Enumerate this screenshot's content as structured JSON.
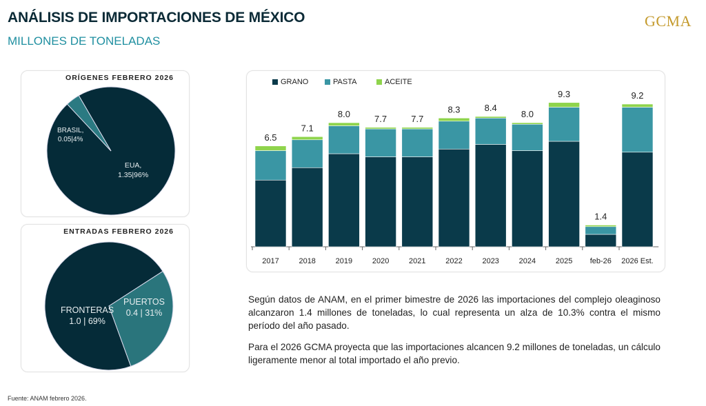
{
  "header": {
    "title": "ANÁLISIS DE IMPORTACIONES DE MÉXICO",
    "subtitle": "MILLONES DE TONELADAS",
    "logo": "GCMA"
  },
  "colors": {
    "grano": "#0a3a4a",
    "pasta": "#3a96a4",
    "aceite": "#8fd44c",
    "eua": "#052b38",
    "brasil": "#2b7a82",
    "fronteras": "#052b38",
    "puertos": "#2a757c",
    "brand_gold": "#c49a2c",
    "subtitle": "#1f8fa0"
  },
  "chart_data": [
    {
      "type": "pie",
      "title": "ORÍGENES FEBRERO 2026",
      "slices": [
        {
          "name": "EUA",
          "value": 1.35,
          "percent": 96,
          "label_name": "EUA,",
          "label_value": "1.35|96%"
        },
        {
          "name": "BRASIL",
          "value": 0.05,
          "percent": 4,
          "label_name": "BRASIL,",
          "label_value": "0.05|4%"
        }
      ]
    },
    {
      "type": "pie",
      "title": "ENTRADAS FEBRERO 2026",
      "slices": [
        {
          "name": "FRONTERAS",
          "value": 1.0,
          "percent": 69,
          "label_name": "FRONTERAS",
          "label_value": "1.0 | 69%"
        },
        {
          "name": "PUERTOS",
          "value": 0.4,
          "percent": 31,
          "label_name": "PUERTOS",
          "label_value": "0.4 | 31%"
        }
      ]
    },
    {
      "type": "bar",
      "stacked": true,
      "legend": "top-left",
      "categories": [
        "2017",
        "2018",
        "2019",
        "2020",
        "2021",
        "2022",
        "2023",
        "2024",
        "2025",
        "feb-26",
        "2026 Est."
      ],
      "series": [
        {
          "name": "GRANO",
          "values": [
            4.3,
            5.1,
            6.0,
            5.8,
            5.8,
            6.3,
            6.6,
            6.2,
            6.8,
            0.8,
            6.1
          ]
        },
        {
          "name": "PASTA",
          "values": [
            1.9,
            1.8,
            1.8,
            1.8,
            1.8,
            1.8,
            1.7,
            1.7,
            2.2,
            0.5,
            2.9
          ]
        },
        {
          "name": "ACEITE",
          "values": [
            0.3,
            0.2,
            0.2,
            0.1,
            0.1,
            0.2,
            0.1,
            0.1,
            0.3,
            0.1,
            0.2
          ]
        }
      ],
      "totals": [
        "6.5",
        "7.1",
        "8.0",
        "7.7",
        "7.7",
        "8.3",
        "8.4",
        "8.0",
        "9.3",
        "1.4",
        "9.2"
      ],
      "ylim": [
        0,
        9.5
      ],
      "grid": false
    }
  ],
  "text": {
    "p1": "Según datos de ANAM, en el primer bimestre de 2026 las importaciones del complejo oleaginoso alcanzaron 1.4 millones de toneladas, lo cual representa un alza de 10.3% contra el mismo período del  año pasado.",
    "p2": "Para el 2026 GCMA proyecta que las importaciones alcancen 9.2 millones de toneladas, un cálculo ligeramente menor al total importado el año previo."
  },
  "footer": "Fuente: ANAM febrero 2026."
}
